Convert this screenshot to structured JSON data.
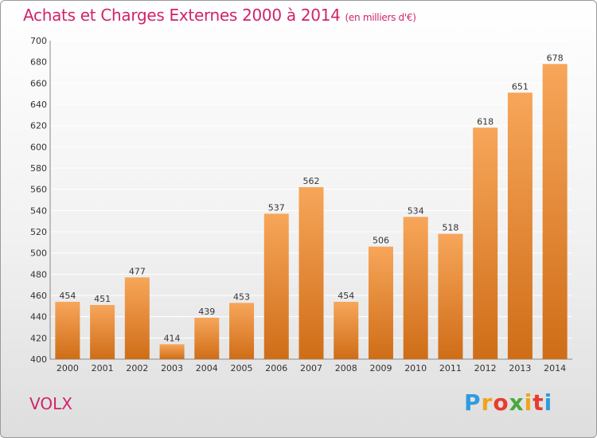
{
  "title": "Achats et Charges Externes 2000 à 2014",
  "title_unit": "(en milliers d'€)",
  "commune": "VOLX",
  "logo_text": "Proxiti",
  "logo_colors": [
    "#2e9be0",
    "#f0a31c",
    "#e63c2f",
    "#4aa83c",
    "#f0a31c",
    "#e63c2f",
    "#2e9be0"
  ],
  "colors": {
    "accent": "#d0246a",
    "bar_light": "#f7a65a",
    "bar_dark": "#cf6d17",
    "grid": "#ffffff"
  },
  "chart_data": {
    "type": "bar",
    "categories": [
      "2000",
      "2001",
      "2002",
      "2003",
      "2004",
      "2005",
      "2006",
      "2007",
      "2008",
      "2009",
      "2010",
      "2011",
      "2012",
      "2013",
      "2014"
    ],
    "values": [
      454,
      451,
      477,
      414,
      439,
      453,
      537,
      562,
      454,
      506,
      534,
      518,
      618,
      651,
      678
    ],
    "ylim": [
      400,
      700
    ],
    "yticks": [
      400,
      420,
      440,
      460,
      480,
      500,
      520,
      540,
      560,
      580,
      600,
      620,
      640,
      660,
      680,
      700
    ],
    "grid": true,
    "data_labels": true
  }
}
